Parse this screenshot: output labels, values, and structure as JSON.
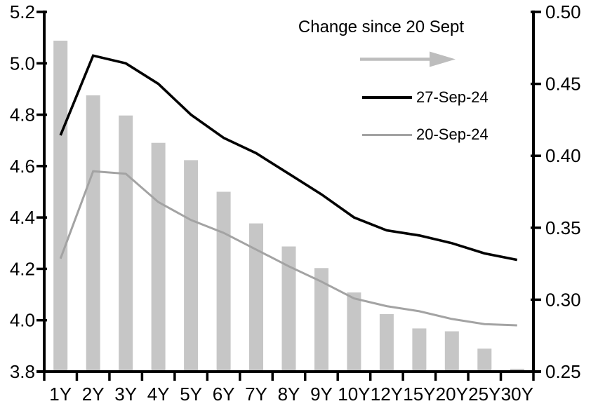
{
  "chart_data": {
    "type": "combo_bar_line",
    "title": "",
    "xlabel": "",
    "ylabel_left": "",
    "ylabel_right": "",
    "grid": false,
    "legend_position": "top-right-inside",
    "categories": [
      "1Y",
      "2Y",
      "3Y",
      "4Y",
      "5Y",
      "6Y",
      "7Y",
      "8Y",
      "9Y",
      "10Y",
      "12Y",
      "15Y",
      "20Y",
      "25Y",
      "30Y"
    ],
    "series": [
      {
        "name": "Change since 20 Sept",
        "type": "bar",
        "axis": "right",
        "color": "#c6c6c6",
        "values": [
          0.48,
          0.442,
          0.428,
          0.409,
          0.397,
          0.375,
          0.353,
          0.337,
          0.322,
          0.305,
          0.29,
          0.28,
          0.278,
          0.266,
          0.252
        ]
      },
      {
        "name": "27-Sep-24",
        "type": "line",
        "axis": "left",
        "color": "#000000",
        "values": [
          4.72,
          5.03,
          5.0,
          4.92,
          4.8,
          4.71,
          4.65,
          4.57,
          4.49,
          4.4,
          4.35,
          4.33,
          4.3,
          4.26,
          4.235
        ]
      },
      {
        "name": "20-Sep-24",
        "type": "line",
        "axis": "left",
        "color": "#a3a3a3",
        "values": [
          4.24,
          4.58,
          4.57,
          4.46,
          4.39,
          4.34,
          4.275,
          4.21,
          4.15,
          4.085,
          4.055,
          4.035,
          4.005,
          3.985,
          3.98
        ]
      }
    ],
    "left_axis": {
      "min": 3.8,
      "max": 5.2,
      "step": 0.2,
      "tick_labels": [
        "5.2",
        "5.0",
        "4.8",
        "4.6",
        "4.4",
        "4.2",
        "4.0",
        "3.8"
      ]
    },
    "right_axis": {
      "min": 0.25,
      "max": 0.5,
      "step": 0.05,
      "tick_labels": [
        "0.50",
        "0.45",
        "0.40",
        "0.35",
        "0.30",
        "0.25"
      ]
    }
  },
  "legend": {
    "annotation": "Change since 20 Sept",
    "arrow_color": "#bdbdbd",
    "entries": [
      {
        "label": "27-Sep-24",
        "color": "#000000"
      },
      {
        "label": "20-Sep-24",
        "color": "#a3a3a3"
      }
    ]
  },
  "colors": {
    "background": "#ffffff",
    "axis": "#000000",
    "bar": "#c6c6c6",
    "line_current": "#000000",
    "line_previous": "#a3a3a3",
    "text": "#000000"
  }
}
